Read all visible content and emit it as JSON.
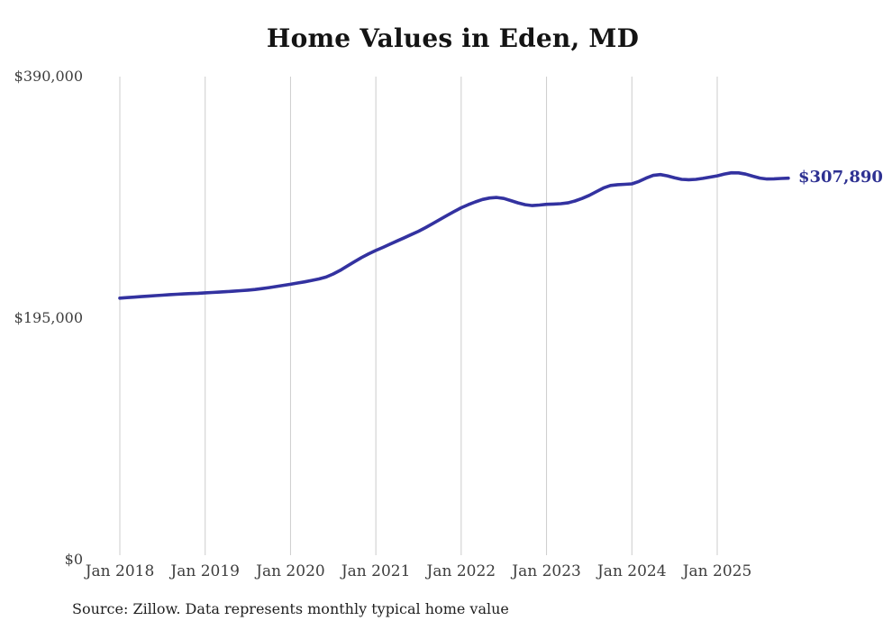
{
  "page": {
    "title": "Home Values in Eden, MD",
    "source_note": "Source: Zillow. Data represents monthly typical home value"
  },
  "colors": {
    "background": "#ffffff",
    "line": "#3332a0",
    "end_label_text": "#2e3192",
    "gridline": "#cccccc",
    "tick_text": "#3d3d3d",
    "title_text": "#141414",
    "source_text": "#1f1f1f"
  },
  "chart_data": {
    "type": "line",
    "title": "Home Values in Eden, MD",
    "xlabel": "",
    "ylabel": "",
    "ylim": [
      0,
      390000
    ],
    "grid": "vertical-gridlines-only",
    "legend": "none",
    "end_label": "$307,890",
    "last_value": 307890,
    "y_ticks": [
      {
        "value": 0,
        "label": "$0"
      },
      {
        "value": 195000,
        "label": "$195,000"
      },
      {
        "value": 390000,
        "label": "$390,000"
      }
    ],
    "x_ticks": [
      {
        "month_index": 0,
        "label": "Jan 2018"
      },
      {
        "month_index": 12,
        "label": "Jan 2019"
      },
      {
        "month_index": 24,
        "label": "Jan 2020"
      },
      {
        "month_index": 36,
        "label": "Jan 2021"
      },
      {
        "month_index": 48,
        "label": "Jan 2022"
      },
      {
        "month_index": 60,
        "label": "Jan 2023"
      },
      {
        "month_index": 72,
        "label": "Jan 2024"
      },
      {
        "month_index": 84,
        "label": "Jan 2025"
      }
    ],
    "x": [
      "2018-01",
      "2018-02",
      "2018-03",
      "2018-04",
      "2018-05",
      "2018-06",
      "2018-07",
      "2018-08",
      "2018-09",
      "2018-10",
      "2018-11",
      "2018-12",
      "2019-01",
      "2019-02",
      "2019-03",
      "2019-04",
      "2019-05",
      "2019-06",
      "2019-07",
      "2019-08",
      "2019-09",
      "2019-10",
      "2019-11",
      "2019-12",
      "2020-01",
      "2020-02",
      "2020-03",
      "2020-04",
      "2020-05",
      "2020-06",
      "2020-07",
      "2020-08",
      "2020-09",
      "2020-10",
      "2020-11",
      "2020-12",
      "2021-01",
      "2021-02",
      "2021-03",
      "2021-04",
      "2021-05",
      "2021-06",
      "2021-07",
      "2021-08",
      "2021-09",
      "2021-10",
      "2021-11",
      "2021-12",
      "2022-01",
      "2022-02",
      "2022-03",
      "2022-04",
      "2022-05",
      "2022-06",
      "2022-07",
      "2022-08",
      "2022-09",
      "2022-10",
      "2022-11",
      "2022-12",
      "2023-01",
      "2023-02",
      "2023-03",
      "2023-04",
      "2023-05",
      "2023-06",
      "2023-07",
      "2023-08",
      "2023-09",
      "2023-10",
      "2023-11",
      "2023-12",
      "2024-01",
      "2024-02",
      "2024-03",
      "2024-04",
      "2024-05",
      "2024-06",
      "2024-07",
      "2024-08",
      "2024-09",
      "2024-10",
      "2024-11",
      "2024-12",
      "2025-01",
      "2025-02",
      "2025-03",
      "2025-04",
      "2025-05",
      "2025-06",
      "2025-07",
      "2025-08",
      "2025-09",
      "2025-10",
      "2025-11"
    ],
    "series": [
      {
        "name": "Monthly typical home value",
        "values": [
          211000,
          211400,
          211800,
          212200,
          212600,
          213000,
          213400,
          213800,
          214100,
          214400,
          214700,
          214900,
          215300,
          215600,
          215900,
          216200,
          216600,
          217000,
          217500,
          218000,
          218700,
          219500,
          220400,
          221300,
          222200,
          223200,
          224200,
          225300,
          226500,
          228000,
          230500,
          233500,
          237000,
          240500,
          243800,
          246800,
          249500,
          252000,
          254600,
          257200,
          259800,
          262400,
          265000,
          268000,
          271200,
          274500,
          277800,
          281000,
          284000,
          286500,
          288800,
          290700,
          291900,
          292300,
          291500,
          289800,
          288000,
          286500,
          285800,
          286200,
          286800,
          287000,
          287300,
          288000,
          289500,
          291500,
          294000,
          297000,
          300000,
          302000,
          302700,
          303000,
          303300,
          305300,
          308000,
          310200,
          310800,
          309800,
          308300,
          307000,
          306700,
          307000,
          307800,
          308800,
          309800,
          311300,
          312300,
          312200,
          311200,
          309500,
          308000,
          307300,
          307400,
          307700,
          307890
        ]
      }
    ]
  }
}
